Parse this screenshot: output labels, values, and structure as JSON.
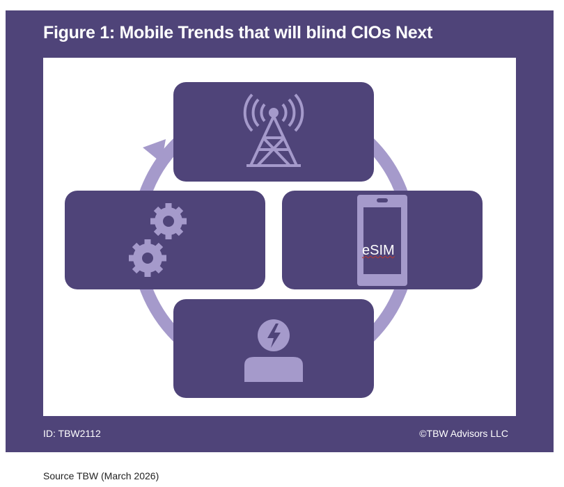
{
  "title": "Figure 1: Mobile Trends that will blind CIOs Next",
  "diagram": {
    "nodes": [
      {
        "icon": "cell-tower-icon"
      },
      {
        "icon": "mobile-phone-icon",
        "label": "eSIM"
      },
      {
        "icon": "user-lightning-icon"
      },
      {
        "icon": "gears-icon"
      }
    ],
    "colors": {
      "box": "#4f4479",
      "accent": "#a59acb"
    }
  },
  "footer": {
    "id": "ID: TBW2112",
    "copyright": "©TBW Advisors LLC"
  },
  "source": "Source TBW (March 2026)"
}
